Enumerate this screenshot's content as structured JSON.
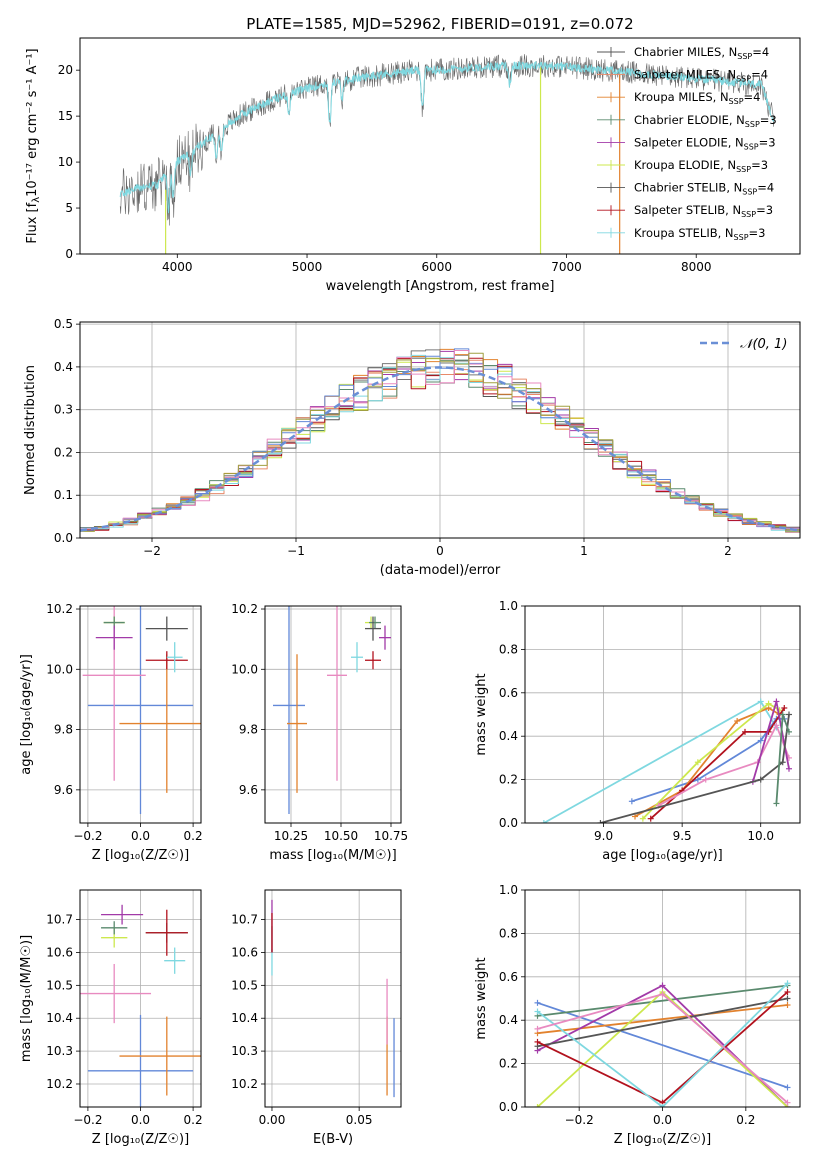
{
  "title": "PLATE=1585, MJD=52962, FIBERID=0191, z=0.072",
  "colors": {
    "blue": "#6288d8",
    "orange": "#e2822e",
    "teal": "#5a8a6e",
    "purple": "#a23aa8",
    "lime": "#cde84e",
    "dark": "#555555",
    "red": "#b2121e",
    "cyan": "#7fd8e0",
    "pink": "#e88ac0",
    "olive": "#a0a040",
    "gray": "#777777"
  },
  "chart_data": [
    {
      "id": "spectrum",
      "type": "line",
      "xlabel": "wavelength [Angstrom, rest frame]",
      "ylabel": "Flux [f",
      "ylabel_math": "λ",
      "ylabel_tail": "10⁻¹⁷ erg cm⁻² s⁻¹ A⁻¹]",
      "xlim": [
        3250,
        8800
      ],
      "ylim": [
        0,
        23.5
      ],
      "xticks": [
        4000,
        5000,
        6000,
        7000,
        8000
      ],
      "yticks": [
        0,
        5,
        10,
        15,
        20
      ],
      "grid": false,
      "legend_position": "upper-right",
      "legend": [
        {
          "label": "Chabrier MILES, N",
          "sub": "SSP",
          "tail": "=4",
          "color": "#555555"
        },
        {
          "label": "Salpeter MILES, N",
          "sub": "SSP",
          "tail": "=4",
          "color": "#e88a6a"
        },
        {
          "label": "Kroupa MILES, N",
          "sub": "SSP",
          "tail": "=4",
          "color": "#e2822e"
        },
        {
          "label": "Chabrier ELODIE, N",
          "sub": "SSP",
          "tail": "=3",
          "color": "#5a8a6e"
        },
        {
          "label": "Salpeter ELODIE, N",
          "sub": "SSP",
          "tail": "=3",
          "color": "#a23aa8"
        },
        {
          "label": "Kroupa ELODIE, N",
          "sub": "SSP",
          "tail": "=3",
          "color": "#cde84e"
        },
        {
          "label": "Chabrier STELIB, N",
          "sub": "SSP",
          "tail": "=4",
          "color": "#555555"
        },
        {
          "label": "Salpeter STELIB, N",
          "sub": "SSP",
          "tail": "=3",
          "color": "#b2121e"
        },
        {
          "label": "Kroupa STELIB, N",
          "sub": "SSP",
          "tail": "=3",
          "color": "#7fd8e0"
        }
      ],
      "continuum": {
        "x": [
          3560,
          3700,
          3850,
          3950,
          4100,
          4300,
          4500,
          4700,
          4900,
          5100,
          5300,
          5500,
          5800,
          6100,
          6400,
          6700,
          7000,
          7300,
          7600,
          7900,
          8200,
          8500,
          8600
        ],
        "y": [
          6.5,
          7.2,
          7.5,
          9.5,
          11.0,
          13.2,
          15.2,
          16.6,
          17.6,
          18.4,
          18.9,
          19.4,
          19.9,
          20.1,
          20.4,
          20.5,
          20.4,
          20.0,
          19.6,
          19.2,
          18.8,
          18.4,
          14.5
        ]
      }
    },
    {
      "id": "residuals",
      "type": "line",
      "xlabel": "(data-model)/error",
      "ylabel": "Normed distribution",
      "xlim": [
        -2.5,
        2.5
      ],
      "ylim": [
        0,
        0.505
      ],
      "xticks": [
        -2,
        -1,
        0,
        1,
        2
      ],
      "xtick_labels": [
        "−2",
        "−1",
        "0",
        "1",
        "2"
      ],
      "yticks": [
        0.0,
        0.1,
        0.2,
        0.3,
        0.4,
        0.5
      ],
      "ytick_labels": [
        "0.0",
        "0.1",
        "0.2",
        "0.3",
        "0.4",
        "0.5"
      ],
      "grid": true,
      "legend_position": "upper-right",
      "legend": [
        {
          "label": "𝒩(0, 1)",
          "color": "#6a8fd6"
        }
      ],
      "gaussian": {
        "mean": 0,
        "sigma": 1
      }
    },
    {
      "id": "age_vs_Z",
      "type": "scatter",
      "xlabel": "Z [log₁₀(Z/Z☉)]",
      "ylabel": "age  [log₁₀(age/yr)]",
      "xlim": [
        -0.23,
        0.23
      ],
      "ylim": [
        9.49,
        10.21
      ],
      "xticks": [
        -0.2,
        0.0,
        0.2
      ],
      "xtick_labels": [
        "−0.2",
        "0.0",
        "0.2"
      ],
      "yticks": [
        9.6,
        9.8,
        10.0,
        10.2
      ],
      "ytick_labels": [
        "9.6",
        "9.8",
        "10.0",
        "10.2"
      ],
      "grid": true,
      "points": [
        {
          "x": 0.0,
          "y": 9.88,
          "ex": 0.2,
          "ey": 0.36,
          "color": "#6288d8"
        },
        {
          "x": 0.1,
          "y": 9.82,
          "ex": 0.18,
          "ey": 0.23,
          "color": "#e2822e"
        },
        {
          "x": -0.1,
          "y": 9.98,
          "ex": 0.12,
          "ey": 0.35,
          "color": "#e88ac0"
        },
        {
          "x": -0.1,
          "y": 10.155,
          "ex": 0.04,
          "ey": 0.02,
          "color": "#cde84e"
        },
        {
          "x": -0.1,
          "y": 10.155,
          "ex": 0.04,
          "ey": 0.02,
          "color": "#5a8a6e"
        },
        {
          "x": -0.1,
          "y": 10.105,
          "ex": 0.07,
          "ey": 0.04,
          "color": "#a23aa8"
        },
        {
          "x": 0.1,
          "y": 10.135,
          "ex": 0.08,
          "ey": 0.04,
          "color": "#555555"
        },
        {
          "x": 0.1,
          "y": 10.03,
          "ex": 0.08,
          "ey": 0.03,
          "color": "#b2121e"
        },
        {
          "x": 0.13,
          "y": 10.04,
          "ex": 0.03,
          "ey": 0.05,
          "color": "#7fd8e0"
        }
      ]
    },
    {
      "id": "age_vs_mass",
      "type": "scatter",
      "xlabel": "mass [log₁₀(M/M☉)]",
      "xlim": [
        10.12,
        10.8
      ],
      "ylim": [
        9.49,
        10.21
      ],
      "xticks": [
        10.25,
        10.5,
        10.75
      ],
      "xtick_labels": [
        "10.25",
        "10.50",
        "10.75"
      ],
      "yticks": [
        9.6,
        9.8,
        10.0,
        10.2
      ],
      "ytick_labels": [
        "9.6",
        "9.8",
        "10.0",
        "10.2"
      ],
      "grid": true,
      "points": [
        {
          "x": 10.24,
          "y": 9.88,
          "ex": 0.08,
          "ey": 0.36,
          "color": "#6288d8"
        },
        {
          "x": 10.28,
          "y": 9.82,
          "ex": 0.05,
          "ey": 0.23,
          "color": "#e2822e"
        },
        {
          "x": 10.48,
          "y": 9.98,
          "ex": 0.05,
          "ey": 0.35,
          "color": "#e88ac0"
        },
        {
          "x": 10.65,
          "y": 10.155,
          "ex": 0.03,
          "ey": 0.02,
          "color": "#cde84e"
        },
        {
          "x": 10.67,
          "y": 10.155,
          "ex": 0.03,
          "ey": 0.02,
          "color": "#5a8a6e"
        },
        {
          "x": 10.72,
          "y": 10.105,
          "ex": 0.03,
          "ey": 0.04,
          "color": "#a23aa8"
        },
        {
          "x": 10.66,
          "y": 10.135,
          "ex": 0.04,
          "ey": 0.04,
          "color": "#555555"
        },
        {
          "x": 10.66,
          "y": 10.03,
          "ex": 0.04,
          "ey": 0.03,
          "color": "#b2121e"
        },
        {
          "x": 10.58,
          "y": 10.04,
          "ex": 0.03,
          "ey": 0.05,
          "color": "#7fd8e0"
        }
      ]
    },
    {
      "id": "weight_vs_age",
      "type": "line",
      "xlabel": "age  [log₁₀(age/yr)]",
      "ylabel": "mass weight",
      "xlim": [
        8.5,
        10.25
      ],
      "ylim": [
        0,
        1.0
      ],
      "xticks": [
        9.0,
        9.5,
        10.0
      ],
      "xtick_labels": [
        "9.0",
        "9.5",
        "10.0"
      ],
      "yticks": [
        0.0,
        0.2,
        0.4,
        0.6,
        0.8,
        1.0
      ],
      "ytick_labels": [
        "0.0",
        "0.2",
        "0.4",
        "0.6",
        "0.8",
        "1.0"
      ],
      "grid": true,
      "series": [
        {
          "color": "#7fd8e0",
          "x": [
            8.62,
            10.0,
            10.1
          ],
          "y": [
            0.0,
            0.56,
            0.44
          ]
        },
        {
          "color": "#6288d8",
          "x": [
            9.18,
            9.6,
            10.0,
            10.1,
            10.15
          ],
          "y": [
            0.1,
            0.2,
            0.38,
            0.48,
            0.48
          ]
        },
        {
          "color": "#e2822e",
          "x": [
            9.2,
            9.5,
            9.85,
            10.05,
            10.12
          ],
          "y": [
            0.03,
            0.15,
            0.47,
            0.53,
            0.5
          ]
        },
        {
          "color": "#cde84e",
          "x": [
            9.25,
            9.6,
            10.05,
            10.12
          ],
          "y": [
            0.02,
            0.28,
            0.55,
            0.52
          ]
        },
        {
          "color": "#b2121e",
          "x": [
            9.3,
            9.5,
            9.9,
            10.05,
            10.15
          ],
          "y": [
            0.02,
            0.15,
            0.42,
            0.42,
            0.53
          ]
        },
        {
          "color": "#e88ac0",
          "x": [
            9.35,
            9.65,
            9.98,
            10.1,
            10.18
          ],
          "y": [
            0.08,
            0.2,
            0.28,
            0.45,
            0.3
          ]
        },
        {
          "color": "#a23aa8",
          "x": [
            9.95,
            10.1,
            10.18
          ],
          "y": [
            0.19,
            0.56,
            0.25
          ]
        },
        {
          "color": "#555555",
          "x": [
            8.98,
            10.0,
            10.14,
            10.18
          ],
          "y": [
            0.0,
            0.2,
            0.28,
            0.5
          ]
        },
        {
          "color": "#5a8a6e",
          "x": [
            10.1,
            10.14,
            10.18
          ],
          "y": [
            0.09,
            0.5,
            0.42
          ]
        }
      ]
    },
    {
      "id": "mass_vs_Z",
      "type": "scatter",
      "xlabel": "Z [log₁₀(Z/Z☉)]",
      "ylabel": "mass [log₁₀(M/M☉)]",
      "xlim": [
        -0.23,
        0.23
      ],
      "ylim": [
        10.13,
        10.79
      ],
      "xticks": [
        -0.2,
        0.0,
        0.2
      ],
      "xtick_labels": [
        "−0.2",
        "0.0",
        "0.2"
      ],
      "yticks": [
        10.2,
        10.3,
        10.4,
        10.5,
        10.6,
        10.7
      ],
      "ytick_labels": [
        "10.2",
        "10.3",
        "10.4",
        "10.5",
        "10.6",
        "10.7"
      ],
      "grid": true,
      "points": [
        {
          "x": 0.0,
          "y": 10.24,
          "ex": 0.2,
          "ey": 0.17,
          "color": "#6288d8"
        },
        {
          "x": 0.1,
          "y": 10.285,
          "ex": 0.18,
          "ey": 0.12,
          "color": "#e2822e"
        },
        {
          "x": -0.1,
          "y": 10.475,
          "ex": 0.14,
          "ey": 0.09,
          "color": "#e88ac0"
        },
        {
          "x": -0.1,
          "y": 10.645,
          "ex": 0.05,
          "ey": 0.03,
          "color": "#cde84e"
        },
        {
          "x": -0.1,
          "y": 10.675,
          "ex": 0.05,
          "ey": 0.02,
          "color": "#5a8a6e"
        },
        {
          "x": -0.07,
          "y": 10.715,
          "ex": 0.08,
          "ey": 0.03,
          "color": "#a23aa8"
        },
        {
          "x": 0.1,
          "y": 10.66,
          "ex": 0.08,
          "ey": 0.03,
          "color": "#555555"
        },
        {
          "x": 0.1,
          "y": 10.66,
          "ex": 0.08,
          "ey": 0.07,
          "color": "#b2121e"
        },
        {
          "x": 0.13,
          "y": 10.575,
          "ex": 0.04,
          "ey": 0.04,
          "color": "#7fd8e0"
        }
      ]
    },
    {
      "id": "mass_vs_ebv",
      "type": "scatter",
      "xlabel": "E(B-V)",
      "xlim": [
        -0.004,
        0.074
      ],
      "ylim": [
        10.13,
        10.79
      ],
      "xticks": [
        0.0,
        0.05
      ],
      "xtick_labels": [
        "0.00",
        "0.05"
      ],
      "yticks": [
        10.2,
        10.3,
        10.4,
        10.5,
        10.6,
        10.7
      ],
      "ytick_labels": [
        "10.2",
        "10.3",
        "10.4",
        "10.5",
        "10.6",
        "10.7"
      ],
      "grid": true,
      "points": [
        {
          "x": 0.07,
          "y": 10.28,
          "ex": 0.0,
          "ey": 0.12,
          "color": "#6288d8"
        },
        {
          "x": 0.066,
          "y": 10.285,
          "ex": 0.0,
          "ey": 0.12,
          "color": "#e2822e"
        },
        {
          "x": 0.066,
          "y": 10.42,
          "ex": 0.0,
          "ey": 0.1,
          "color": "#e88ac0"
        },
        {
          "x": 0.0,
          "y": 10.57,
          "ex": 0.0,
          "ey": 0.04,
          "color": "#7fd8e0"
        },
        {
          "x": 0.0,
          "y": 10.64,
          "ex": 0.0,
          "ey": 0.04,
          "color": "#5a8a6e"
        },
        {
          "x": 0.0,
          "y": 10.68,
          "ex": 0.0,
          "ey": 0.08,
          "color": "#a23aa8"
        },
        {
          "x": 0.0,
          "y": 10.66,
          "ex": 0.0,
          "ey": 0.06,
          "color": "#b2121e"
        }
      ]
    },
    {
      "id": "weight_vs_Z",
      "type": "line",
      "xlabel": "Z [log₁₀(Z/Z☉)]",
      "ylabel": "mass weight",
      "xlim": [
        -0.33,
        0.33
      ],
      "ylim": [
        0,
        1.0
      ],
      "xticks": [
        -0.2,
        0.0,
        0.2
      ],
      "xtick_labels": [
        "−0.2",
        "0.0",
        "0.2"
      ],
      "yticks": [
        0.0,
        0.2,
        0.4,
        0.6,
        0.8,
        1.0
      ],
      "ytick_labels": [
        "0.0",
        "0.2",
        "0.4",
        "0.6",
        "0.8",
        "1.0"
      ],
      "grid": true,
      "series": [
        {
          "color": "#6288d8",
          "x": [
            -0.3,
            0.3
          ],
          "y": [
            0.48,
            0.09
          ]
        },
        {
          "color": "#e2822e",
          "x": [
            -0.3,
            0.3
          ],
          "y": [
            0.34,
            0.47
          ]
        },
        {
          "color": "#5a8a6e",
          "x": [
            -0.3,
            0.3
          ],
          "y": [
            0.42,
            0.56
          ]
        },
        {
          "color": "#a23aa8",
          "x": [
            -0.3,
            0.0,
            0.3
          ],
          "y": [
            0.26,
            0.56,
            0.0
          ]
        },
        {
          "color": "#cde84e",
          "x": [
            -0.3,
            0.0,
            0.3
          ],
          "y": [
            0.0,
            0.53,
            0.0
          ]
        },
        {
          "color": "#555555",
          "x": [
            -0.3,
            0.3
          ],
          "y": [
            0.28,
            0.5
          ]
        },
        {
          "color": "#b2121e",
          "x": [
            -0.3,
            0.0,
            0.3
          ],
          "y": [
            0.3,
            0.02,
            0.53
          ]
        },
        {
          "color": "#7fd8e0",
          "x": [
            -0.3,
            0.0,
            0.3
          ],
          "y": [
            0.44,
            0.0,
            0.57
          ]
        },
        {
          "color": "#e88ac0",
          "x": [
            -0.3,
            0.0,
            0.3
          ],
          "y": [
            0.36,
            0.52,
            0.02
          ]
        }
      ]
    }
  ]
}
